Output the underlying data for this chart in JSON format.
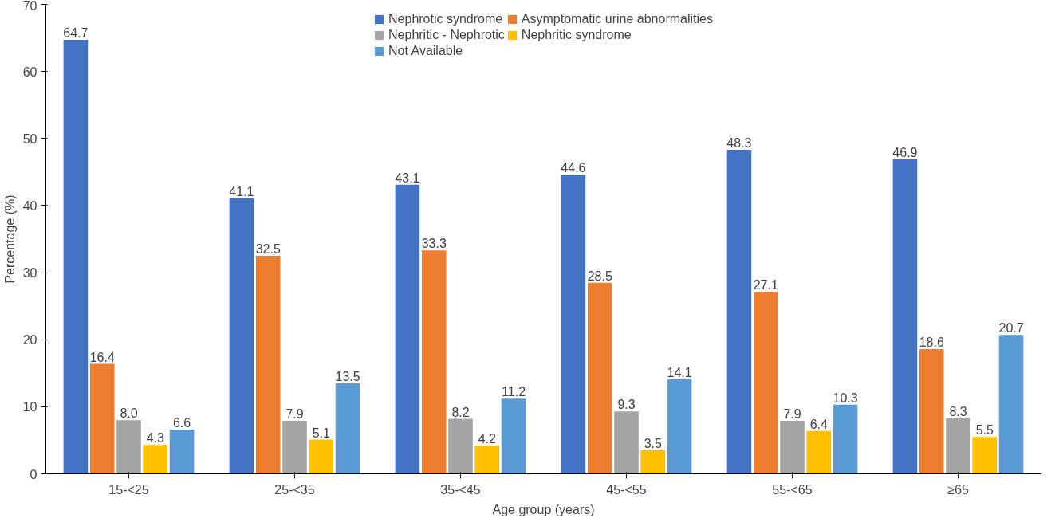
{
  "chart_data": {
    "type": "bar",
    "xlabel": "Age group (years)",
    "ylabel": "Percentage (%)",
    "categories": [
      "15-<25",
      "25-<35",
      "35-<45",
      "45-<55",
      "55-<65",
      "≥65"
    ],
    "series": [
      {
        "name": "Nephrotic syndrome",
        "color": "#4472c4",
        "values": [
          64.7,
          41.1,
          43.1,
          44.6,
          48.3,
          46.9
        ],
        "value_labels": [
          "64.7",
          "41.1",
          "43.1",
          "44.6",
          "48.3",
          "46.9"
        ]
      },
      {
        "name": "Asymptomatic urine abnormalities",
        "color": "#ed7d31",
        "values": [
          16.4,
          32.5,
          33.3,
          28.5,
          27.1,
          18.6
        ],
        "value_labels": [
          "16.4",
          "32.5",
          "33.3",
          "28.5",
          "27.1",
          "18.6"
        ]
      },
      {
        "name": "Nephritic - Nephrotic",
        "color": "#a5a5a5",
        "values": [
          8.0,
          7.9,
          8.2,
          9.3,
          7.9,
          8.3
        ],
        "value_labels": [
          "8.0",
          "7.9",
          "8.2",
          "9.3",
          "7.9",
          "8.3"
        ]
      },
      {
        "name": "Nephritic syndrome",
        "color": "#ffc000",
        "values": [
          4.3,
          5.1,
          4.2,
          3.5,
          6.4,
          5.5
        ],
        "value_labels": [
          "4.3",
          "5.1",
          "4.2",
          "3.5",
          "6.4",
          "5.5"
        ]
      },
      {
        "name": "Not Available",
        "color": "#5b9bd5",
        "values": [
          6.6,
          13.5,
          11.2,
          14.1,
          10.3,
          20.7
        ],
        "value_labels": [
          "6.6",
          "13.5",
          "11.2",
          "14.1",
          "10.3",
          "20.7"
        ]
      }
    ],
    "ylim": [
      0,
      70
    ],
    "yticks": [
      0,
      10,
      20,
      30,
      40,
      50,
      60,
      70
    ],
    "grid": false,
    "legend": "top"
  }
}
